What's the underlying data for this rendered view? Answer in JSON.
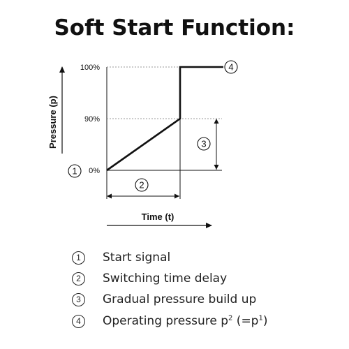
{
  "title": "Soft Start Function:",
  "diagram": {
    "y_axis_label": "Pressure (p)",
    "x_axis_label": "Time (t)",
    "y_ticks": [
      {
        "label": "100%",
        "value": 100
      },
      {
        "label": "90%",
        "value": 90
      },
      {
        "label": "0%",
        "value": 0
      }
    ],
    "markers": [
      "1",
      "2",
      "3",
      "4"
    ],
    "colors": {
      "line": "#111111",
      "guide": "#999999"
    }
  },
  "legend": [
    {
      "number": "1",
      "text": "Start signal"
    },
    {
      "number": "2",
      "text": "Switching time delay"
    },
    {
      "number": "3",
      "text": "Gradual pressure build up"
    },
    {
      "number": "4",
      "text": "Operating pressure p",
      "sup1": "2",
      "mid": " (=p",
      "sup2": "1",
      "end": ")"
    }
  ]
}
